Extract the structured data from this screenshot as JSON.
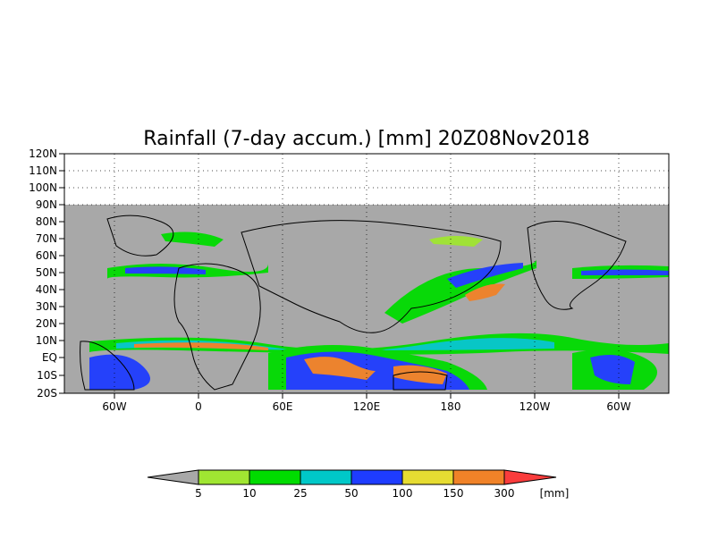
{
  "title": "Rainfall (7-day accum.) [mm] 20Z08Nov2018",
  "map": {
    "lat_labels": [
      "120N",
      "110N",
      "100N",
      "90N",
      "80N",
      "70N",
      "60N",
      "50N",
      "40N",
      "30N",
      "20N",
      "10N",
      "EQ",
      "10S",
      "20S"
    ],
    "lon_labels": [
      "60W",
      "0",
      "60E",
      "120E",
      "180",
      "120W",
      "60W"
    ],
    "no_data_color": "#a8a8a8",
    "grid": "dotted"
  },
  "legend": {
    "unit": "[mm]",
    "colors": [
      "#a8a8a8",
      "#a0e632",
      "#00dc00",
      "#00c8c8",
      "#1e3cff",
      "#e6dc32",
      "#f08228",
      "#fa3c3c"
    ],
    "thresholds": [
      "5",
      "10",
      "25",
      "50",
      "100",
      "150",
      "300"
    ]
  }
}
